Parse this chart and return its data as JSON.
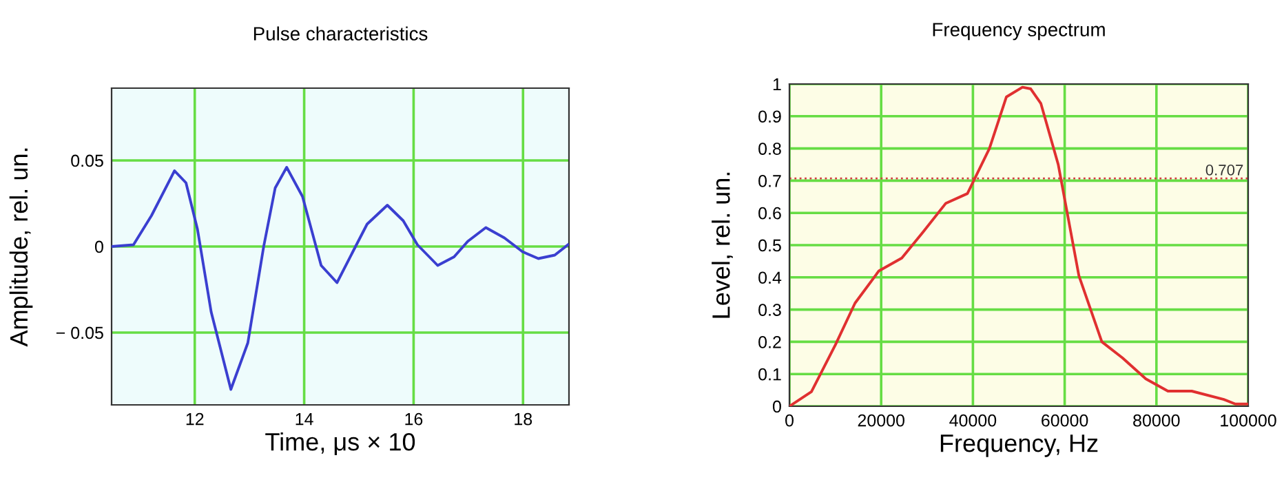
{
  "chart_data": [
    {
      "type": "line",
      "title": "Pulse characteristics",
      "xlabel": "Time, μs × 10",
      "ylabel": "Amplitude, rel. un.",
      "x": [
        10.48,
        10.88,
        11.21,
        11.63,
        11.84,
        12.05,
        12.3,
        12.66,
        12.97,
        13.26,
        13.47,
        13.68,
        13.97,
        14.31,
        14.6,
        14.89,
        15.15,
        15.52,
        15.81,
        16.07,
        16.44,
        16.74,
        16.99,
        17.32,
        17.66,
        17.99,
        18.28,
        18.58,
        18.82
      ],
      "series": [
        {
          "color": "#3a3fd0",
          "values": [
            0,
            0.001,
            0.018,
            0.044,
            0.037,
            0.01,
            -0.038,
            -0.083,
            -0.056,
            0,
            0.034,
            0.046,
            0.029,
            -0.011,
            -0.021,
            -0.003,
            0.013,
            0.024,
            0.015,
            0.001,
            -0.011,
            -0.006,
            0.003,
            0.011,
            0.005,
            -0.003,
            -0.007,
            -0.005,
            0.001
          ]
        }
      ],
      "xlim": [
        10.48,
        18.84
      ],
      "ylim": [
        -0.092,
        0.092
      ],
      "xticks": [
        12,
        14,
        16,
        18
      ],
      "yticks": [
        {
          "value": -0.05,
          "label": "− 0.05"
        },
        0,
        0.05
      ],
      "grid": true,
      "legend": false,
      "marker": "none",
      "line_style": "solid"
    },
    {
      "type": "line",
      "title": "Frequency spectrum",
      "xlabel": "Frequency, Hz",
      "ylabel": "Level, rel. un.",
      "x": [
        0,
        4800,
        10000,
        14300,
        19500,
        24500,
        29100,
        34100,
        38800,
        43600,
        47300,
        50800,
        52600,
        54800,
        58600,
        63100,
        68100,
        72600,
        77700,
        82500,
        87700,
        94700,
        97200,
        100000
      ],
      "series": [
        {
          "color": "#e03030",
          "values": [
            0,
            0.045,
            0.19,
            0.32,
            0.42,
            0.46,
            0.54,
            0.63,
            0.66,
            0.8,
            0.96,
            0.99,
            0.985,
            0.94,
            0.75,
            0.405,
            0.2,
            0.15,
            0.085,
            0.047,
            0.047,
            0.021,
            0.007,
            0.007
          ]
        }
      ],
      "ref_lines": [
        {
          "axis": "y",
          "value": 0.707,
          "label": "0.707",
          "color": "#d04040",
          "line_style": "dotted"
        }
      ],
      "xlim": [
        0,
        100000
      ],
      "ylim": [
        0,
        1
      ],
      "xticks": [
        0,
        20000,
        40000,
        60000,
        80000,
        100000
      ],
      "yticks": [
        0,
        0.1,
        0.2,
        0.3,
        0.4,
        0.5,
        0.6,
        0.7,
        0.8,
        0.9,
        1
      ],
      "grid": true,
      "legend": false,
      "marker": "none",
      "line_style": "solid"
    }
  ]
}
